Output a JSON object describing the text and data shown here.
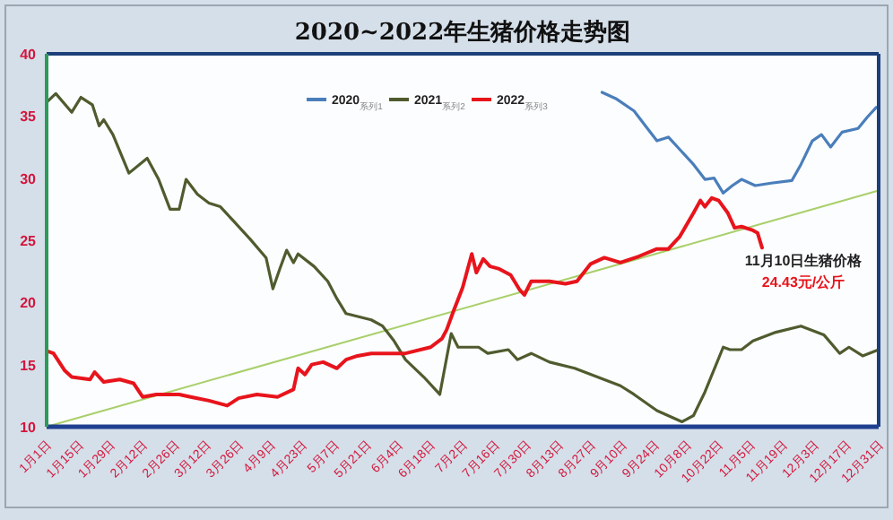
{
  "chart_data": {
    "type": "line",
    "title": "2020~2022年生猪价格走势图",
    "xlim": [
      "--01-01",
      "--12-31"
    ],
    "xticks": [
      {
        "value": "--01-01",
        "label": "1月1日"
      },
      {
        "value": "--01-15",
        "label": "1月15日"
      },
      {
        "value": "--01-29",
        "label": "1月29日"
      },
      {
        "value": "--02-12",
        "label": "2月12日"
      },
      {
        "value": "--02-26",
        "label": "2月26日"
      },
      {
        "value": "--03-12",
        "label": "3月12日"
      },
      {
        "value": "--03-26",
        "label": "3月26日"
      },
      {
        "value": "--04-09",
        "label": "4月9日"
      },
      {
        "value": "--04-23",
        "label": "4月23日"
      },
      {
        "value": "--05-07",
        "label": "5月7日"
      },
      {
        "value": "--05-21",
        "label": "5月21日"
      },
      {
        "value": "--06-04",
        "label": "6月4日"
      },
      {
        "value": "--06-18",
        "label": "6月18日"
      },
      {
        "value": "--07-02",
        "label": "7月2日"
      },
      {
        "value": "--07-16",
        "label": "7月16日"
      },
      {
        "value": "--07-30",
        "label": "7月30日"
      },
      {
        "value": "--08-13",
        "label": "8月13日"
      },
      {
        "value": "--08-27",
        "label": "8月27日"
      },
      {
        "value": "--09-10",
        "label": "9月10日"
      },
      {
        "value": "--09-24",
        "label": "9月24日"
      },
      {
        "value": "--10-08",
        "label": "10月8日"
      },
      {
        "value": "--10-22",
        "label": "10月22日"
      },
      {
        "value": "--11-05",
        "label": "11月5日"
      },
      {
        "value": "--11-19",
        "label": "11月19日"
      },
      {
        "value": "--12-03",
        "label": "12月3日"
      },
      {
        "value": "--12-17",
        "label": "12月17日"
      },
      {
        "value": "--12-31",
        "label": "12月31日"
      }
    ],
    "ylim": [
      10,
      40
    ],
    "yticks": [
      10,
      15,
      20,
      25,
      30,
      35,
      40
    ],
    "legend": "top",
    "series": [
      {
        "name": "2020$_{系列1}$",
        "color": "#4a7ebb",
        "x": [
          "--09-01",
          "--09-07",
          "--09-15",
          "--09-20",
          "--09-25",
          "--09-30",
          "--10-05",
          "--10-11",
          "--10-16",
          "--10-20",
          "--10-24",
          "--10-28",
          "--11-01",
          "--11-07",
          "--11-14",
          "--11-23",
          "--11-27",
          "--12-02",
          "--12-06",
          "--12-10",
          "--12-15",
          "--12-22",
          "--12-26",
          "--12-30"
        ],
        "values": [
          36.9,
          36.4,
          35.4,
          34.2,
          33.0,
          33.3,
          32.3,
          31.1,
          29.9,
          30.0,
          28.8,
          29.4,
          29.9,
          29.4,
          29.6,
          29.8,
          31.1,
          33.0,
          33.5,
          32.5,
          33.7,
          34.0,
          34.9,
          35.7
        ]
      },
      {
        "name": "2021$_{系列2}$",
        "color": "#4f5b2e",
        "x": [
          "--01-01",
          "--01-05",
          "--01-12",
          "--01-16",
          "--01-21",
          "--01-24",
          "--01-26",
          "--01-30",
          "--02-06",
          "--02-14",
          "--02-19",
          "--02-24",
          "--02-28",
          "--03-03",
          "--03-08",
          "--03-13",
          "--03-18",
          "--03-24",
          "--03-31",
          "--04-07",
          "--04-10",
          "--04-13",
          "--04-16",
          "--04-19",
          "--04-21",
          "--04-28",
          "--05-04",
          "--05-08",
          "--05-12",
          "--05-23",
          "--05-28",
          "--06-02",
          "--06-07",
          "--06-15",
          "--06-22",
          "--06-27",
          "--06-30",
          "--07-09",
          "--07-13",
          "--07-22",
          "--07-26",
          "--08-01",
          "--08-09",
          "--08-20",
          "--08-30",
          "--09-09",
          "--09-15",
          "--09-25",
          "--10-06",
          "--10-11",
          "--10-16",
          "--10-24",
          "--10-27",
          "--11-01",
          "--11-06",
          "--11-16",
          "--11-27",
          "--12-07",
          "--12-14",
          "--12-18",
          "--12-24",
          "--12-31"
        ],
        "values": [
          36.1,
          36.8,
          35.3,
          36.5,
          35.9,
          34.2,
          34.7,
          33.5,
          30.4,
          31.6,
          29.9,
          27.5,
          27.5,
          29.9,
          28.7,
          28.0,
          27.7,
          26.5,
          25.1,
          23.6,
          21.1,
          22.7,
          24.2,
          23.2,
          23.9,
          22.9,
          21.7,
          20.3,
          19.1,
          18.6,
          18.1,
          16.9,
          15.4,
          14.0,
          12.6,
          17.5,
          16.4,
          16.4,
          15.9,
          16.2,
          15.4,
          15.9,
          15.2,
          14.7,
          14.0,
          13.3,
          12.6,
          11.3,
          10.4,
          10.9,
          12.8,
          16.4,
          16.2,
          16.2,
          16.9,
          17.6,
          18.1,
          17.4,
          15.9,
          16.4,
          15.7,
          16.2
        ]
      },
      {
        "name": "2022$_{系列3}$",
        "color": "#e8141c",
        "x": [
          "--01-01",
          "--01-04",
          "--01-09",
          "--01-12",
          "--01-20",
          "--01-22",
          "--01-26",
          "--02-02",
          "--02-08",
          "--02-12",
          "--02-18",
          "--02-28",
          "--03-05",
          "--03-13",
          "--03-21",
          "--03-26",
          "--04-03",
          "--04-12",
          "--04-19",
          "--04-21",
          "--04-24",
          "--04-27",
          "--05-02",
          "--05-08",
          "--05-12",
          "--05-17",
          "--05-23",
          "--06-07",
          "--06-18",
          "--06-23",
          "--06-25",
          "--06-28",
          "--07-02",
          "--07-06",
          "--07-08",
          "--07-11",
          "--07-14",
          "--07-18",
          "--07-23",
          "--07-27",
          "--07-29",
          "--08-01",
          "--08-09",
          "--08-16",
          "--08-21",
          "--08-27",
          "--09-02",
          "--09-09",
          "--09-17",
          "--09-25",
          "--09-30",
          "--10-05",
          "--10-11",
          "--10-14",
          "--10-16",
          "--10-19",
          "--10-22",
          "--10-26",
          "--10-29",
          "--11-01",
          "--11-06",
          "--11-08",
          "--11-10"
        ],
        "values": [
          16.1,
          15.9,
          14.5,
          14.0,
          13.8,
          14.4,
          13.6,
          13.8,
          13.5,
          12.4,
          12.6,
          12.6,
          12.4,
          12.1,
          11.7,
          12.3,
          12.6,
          12.4,
          13.0,
          14.7,
          14.2,
          15.0,
          15.2,
          14.7,
          15.4,
          15.7,
          15.9,
          15.9,
          16.4,
          17.1,
          17.8,
          19.3,
          21.2,
          23.9,
          22.4,
          23.5,
          22.9,
          22.7,
          22.2,
          21.0,
          20.6,
          21.7,
          21.7,
          21.5,
          21.7,
          23.1,
          23.6,
          23.2,
          23.7,
          24.3,
          24.3,
          25.3,
          27.2,
          28.2,
          27.7,
          28.4,
          28.2,
          27.2,
          26.0,
          26.1,
          25.8,
          25.6,
          24.4
        ]
      },
      {
        "type": "line",
        "color": "#a9cf6a",
        "x": [
          "--01-01",
          "--12-31"
        ],
        "values": [
          10,
          29
        ]
      }
    ],
    "annotations": [
      "11月10日生猪价格",
      "24.43元/公斤"
    ]
  }
}
